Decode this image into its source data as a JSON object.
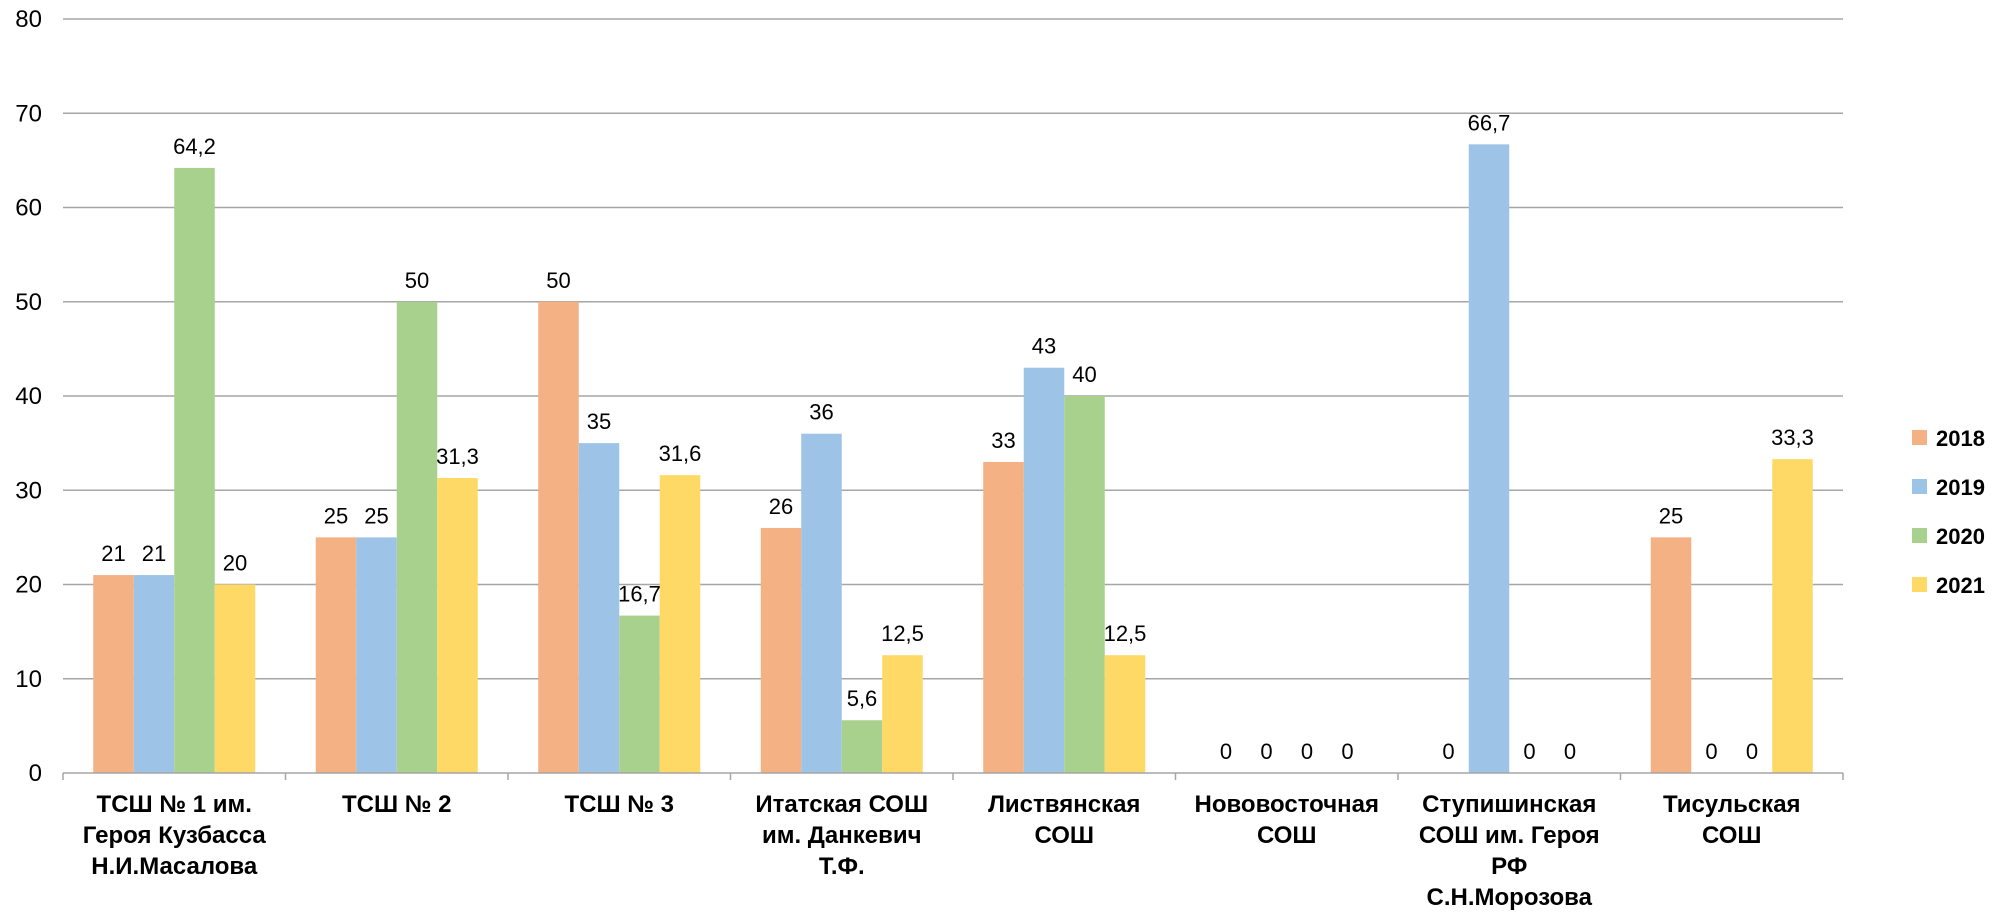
{
  "chart_data": {
    "type": "bar",
    "categories": [
      [
        "ТСШ № 1 им.",
        "Героя Кузбасса",
        "Н.И.Масалова"
      ],
      [
        "ТСШ № 2"
      ],
      [
        "ТСШ № 3"
      ],
      [
        "Итатская СОШ",
        "им. Данкевич",
        "Т.Ф."
      ],
      [
        "Листвянская",
        "СОШ"
      ],
      [
        "Нововосточная",
        "СОШ"
      ],
      [
        "Ступишинская",
        "СОШ им. Героя",
        "РФ",
        "С.Н.Морозова"
      ],
      [
        "Тисульская",
        "СОШ"
      ]
    ],
    "series": [
      {
        "name": "2018",
        "color": "#F4B183",
        "values": [
          21,
          25,
          50,
          26,
          33,
          0,
          0,
          25
        ],
        "labels": [
          "21",
          "25",
          "50",
          "26",
          "33",
          "0",
          "0",
          "25"
        ]
      },
      {
        "name": "2019",
        "color": "#9DC3E6",
        "values": [
          21,
          25,
          35,
          36,
          43,
          0,
          66.7,
          0
        ],
        "labels": [
          "21",
          "25",
          "35",
          "36",
          "43",
          "0",
          "66,7",
          "0"
        ]
      },
      {
        "name": "2020",
        "color": "#A9D18E",
        "values": [
          64.2,
          50,
          16.7,
          5.6,
          40,
          0,
          0,
          0
        ],
        "labels": [
          "64,2",
          "50",
          "16,7",
          "5,6",
          "40",
          "0",
          "0",
          "0"
        ]
      },
      {
        "name": "2021",
        "color": "#FFD966",
        "values": [
          20,
          31.3,
          31.6,
          12.5,
          12.5,
          0,
          0,
          33.3
        ],
        "labels": [
          "20",
          "31,3",
          "31,6",
          "12,5",
          "12,5",
          "0",
          "0",
          "33,3"
        ]
      }
    ],
    "y_ticks": [
      "0",
      "10",
      "20",
      "30",
      "40",
      "50",
      "60",
      "70",
      "80"
    ],
    "ylim": [
      0,
      80
    ],
    "grid": true,
    "legend_position": "right",
    "title": "",
    "xlabel": "",
    "ylabel": ""
  }
}
